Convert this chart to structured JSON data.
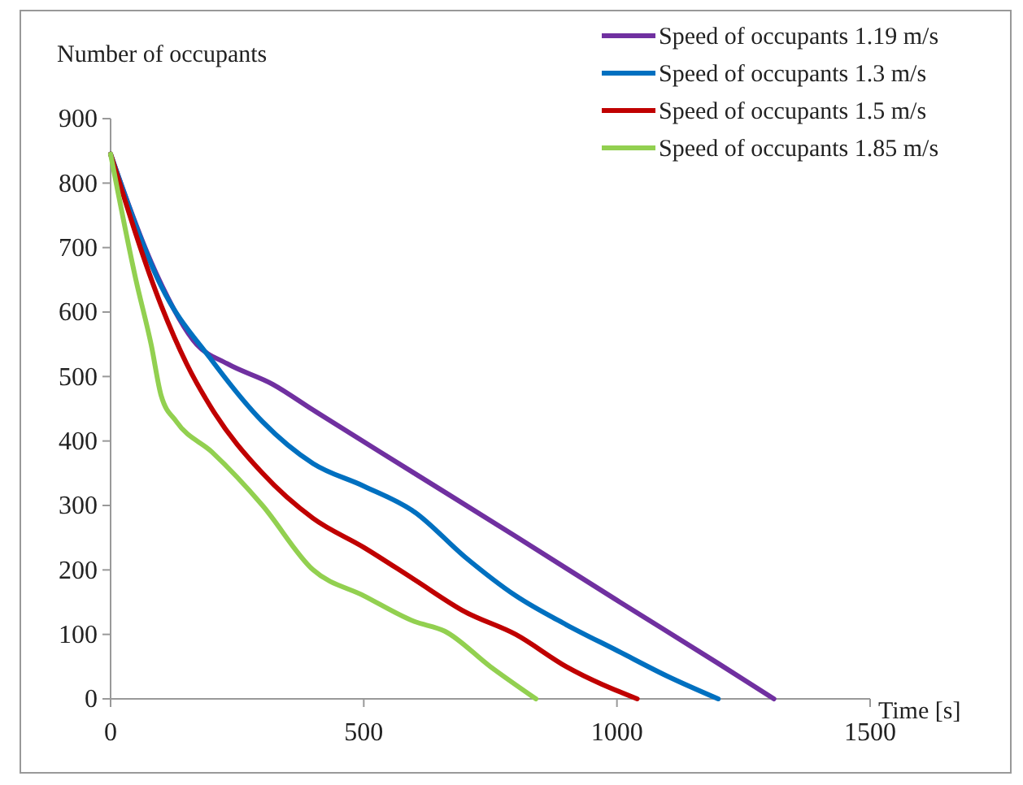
{
  "chart_data": {
    "type": "line",
    "xlabel": "Time [s]",
    "ylabel": "Number of occupants",
    "xlim": [
      0,
      1500
    ],
    "xticks": [
      0,
      500,
      1000,
      1500
    ],
    "ylim": [
      0,
      900
    ],
    "yticks": [
      0,
      100,
      200,
      300,
      400,
      500,
      600,
      700,
      800,
      900
    ],
    "grid": false,
    "legend": "top right",
    "marker": "none",
    "line_style": "solid",
    "series": [
      {
        "name": "Speed of occupants 1.19 m/s",
        "color": "#7030a0",
        "x": [
          0,
          90,
          170,
          230,
          320,
          400,
          600,
          800,
          1000,
          1200,
          1310
        ],
        "values": [
          845,
          660,
          550,
          520,
          488,
          448,
          350,
          252,
          153,
          55,
          0
        ]
      },
      {
        "name": "Speed of occupants 1.3 m/s",
        "color": "#0070c0",
        "x": [
          0,
          100,
          200,
          300,
          400,
          500,
          600,
          700,
          800,
          900,
          1000,
          1100,
          1200
        ],
        "values": [
          845,
          640,
          525,
          430,
          365,
          330,
          290,
          220,
          160,
          115,
          75,
          35,
          0
        ]
      },
      {
        "name": "Speed of occupants 1.5 m/s",
        "color": "#c00000",
        "x": [
          0,
          100,
          150,
          200,
          300,
          400,
          500,
          600,
          700,
          800,
          900,
          1040
        ],
        "values": [
          845,
          610,
          520,
          450,
          350,
          280,
          235,
          185,
          135,
          100,
          50,
          0
        ]
      },
      {
        "name": "Speed of occupants 1.85 m/s",
        "color": "#92d050",
        "x": [
          0,
          50,
          80,
          100,
          130,
          200,
          300,
          400,
          500,
          600,
          660,
          750,
          840
        ],
        "values": [
          845,
          650,
          550,
          470,
          430,
          383,
          300,
          200,
          160,
          120,
          105,
          50,
          0
        ]
      }
    ]
  }
}
